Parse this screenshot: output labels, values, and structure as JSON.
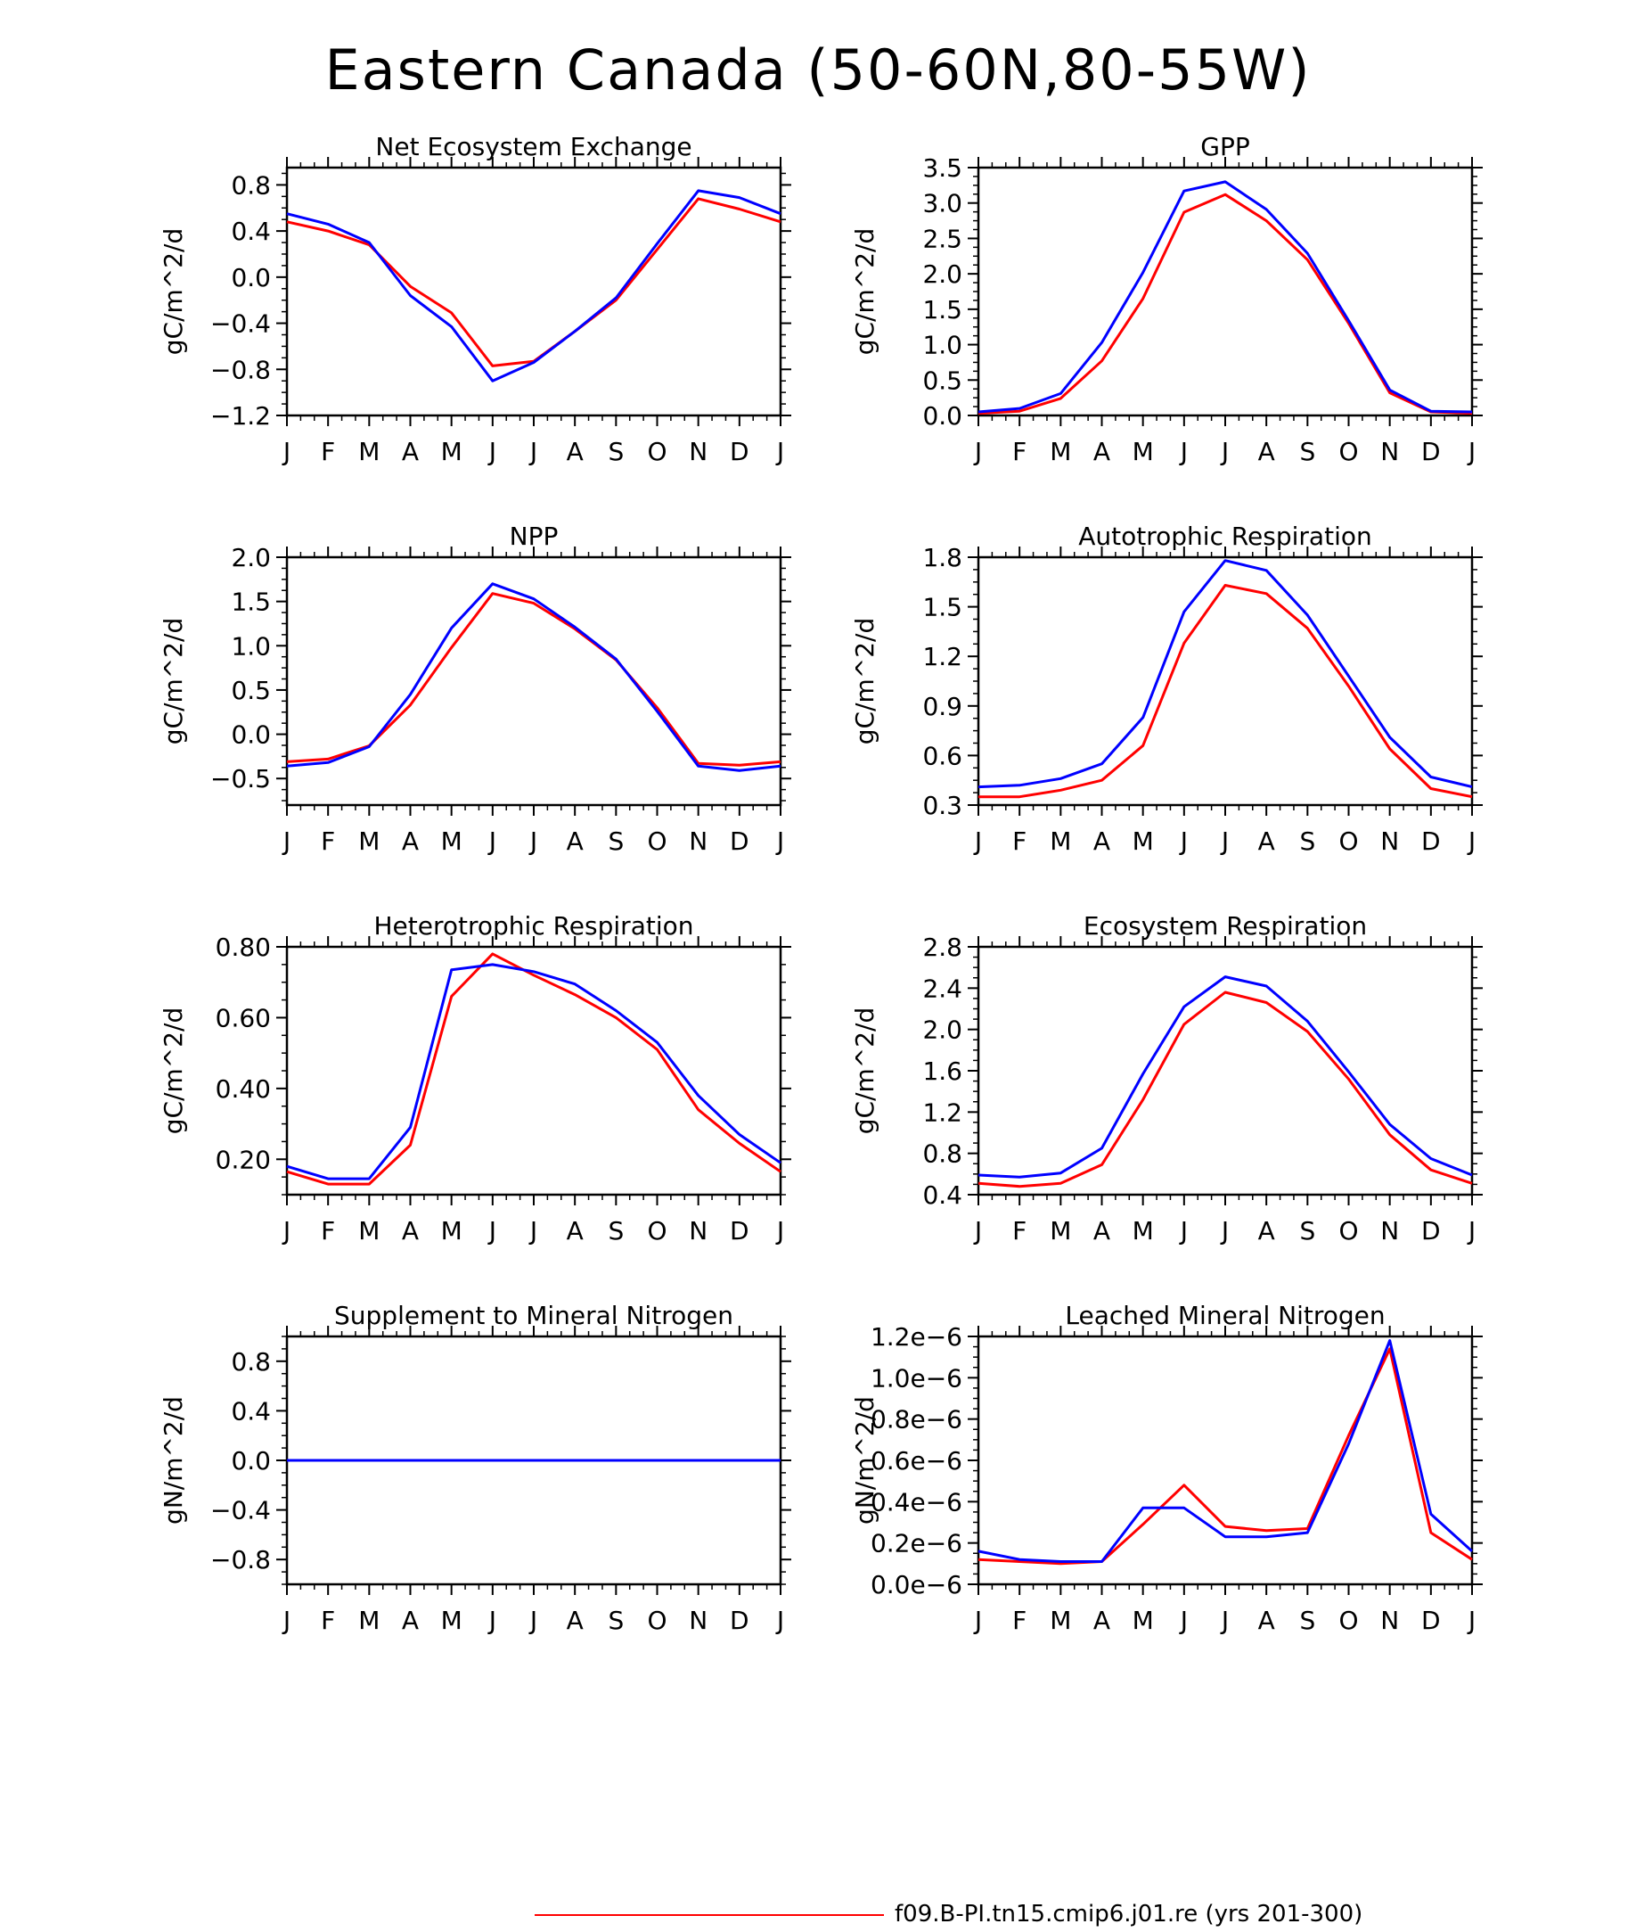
{
  "title": "Eastern Canada (50-60N,80-55W)",
  "legend": {
    "label": "f09.B-PI.tn15.cmip6.j01.re (yrs 201-300)",
    "color": "#ff0000"
  },
  "colors": {
    "series_a": "#ff0000",
    "series_b": "#0000ff"
  },
  "chart_data": [
    {
      "type": "line",
      "title": "Net Ecosystem Exchange",
      "xlabel": "",
      "ylabel": "gC/m^2/d",
      "categories": [
        "J",
        "F",
        "M",
        "A",
        "M",
        "J",
        "J",
        "A",
        "S",
        "O",
        "N",
        "D",
        "J"
      ],
      "ylim": [
        -1.2,
        0.95
      ],
      "yticks": [
        -1.2,
        -0.8,
        -0.4,
        0.0,
        0.4,
        0.8
      ],
      "ytick_labels": [
        "−1.2",
        "−0.8",
        "−0.4",
        "0.0",
        "0.4",
        "0.8"
      ],
      "series": [
        {
          "color": "#ff0000",
          "values": [
            0.48,
            0.4,
            0.28,
            -0.08,
            -0.31,
            -0.77,
            -0.73,
            -0.47,
            -0.2,
            0.24,
            0.68,
            0.59,
            0.48
          ]
        },
        {
          "color": "#0000ff",
          "values": [
            0.55,
            0.46,
            0.3,
            -0.16,
            -0.43,
            -0.9,
            -0.74,
            -0.47,
            -0.18,
            0.29,
            0.75,
            0.69,
            0.55
          ]
        }
      ]
    },
    {
      "type": "line",
      "title": "GPP",
      "xlabel": "",
      "ylabel": "gC/m^2/d",
      "categories": [
        "J",
        "F",
        "M",
        "A",
        "M",
        "J",
        "J",
        "A",
        "S",
        "O",
        "N",
        "D",
        "J"
      ],
      "ylim": [
        0.0,
        3.5
      ],
      "yticks": [
        0.0,
        0.5,
        1.0,
        1.5,
        2.0,
        2.5,
        3.0,
        3.5
      ],
      "ytick_labels": [
        "0.0",
        "0.5",
        "1.0",
        "1.5",
        "2.0",
        "2.5",
        "3.0",
        "3.5"
      ],
      "series": [
        {
          "color": "#ff0000",
          "values": [
            0.03,
            0.06,
            0.24,
            0.77,
            1.65,
            2.87,
            3.12,
            2.75,
            2.2,
            1.3,
            0.32,
            0.05,
            0.03
          ]
        },
        {
          "color": "#0000ff",
          "values": [
            0.05,
            0.1,
            0.31,
            1.03,
            2.02,
            3.17,
            3.3,
            2.91,
            2.29,
            1.34,
            0.36,
            0.06,
            0.05
          ]
        }
      ]
    },
    {
      "type": "line",
      "title": "NPP",
      "xlabel": "",
      "ylabel": "gC/m^2/d",
      "categories": [
        "J",
        "F",
        "M",
        "A",
        "M",
        "J",
        "J",
        "A",
        "S",
        "O",
        "N",
        "D",
        "J"
      ],
      "ylim": [
        -0.8,
        2.0
      ],
      "yticks": [
        -0.5,
        0.0,
        0.5,
        1.0,
        1.5,
        2.0
      ],
      "ytick_labels": [
        "−0.5",
        "0.0",
        "0.5",
        "1.0",
        "1.5",
        "2.0"
      ],
      "series": [
        {
          "color": "#ff0000",
          "values": [
            -0.31,
            -0.28,
            -0.13,
            0.33,
            0.98,
            1.59,
            1.48,
            1.19,
            0.84,
            0.3,
            -0.33,
            -0.35,
            -0.31
          ]
        },
        {
          "color": "#0000ff",
          "values": [
            -0.36,
            -0.32,
            -0.14,
            0.45,
            1.2,
            1.7,
            1.53,
            1.21,
            0.85,
            0.26,
            -0.36,
            -0.41,
            -0.36
          ]
        }
      ]
    },
    {
      "type": "line",
      "title": "Autotrophic Respiration",
      "xlabel": "",
      "ylabel": "gC/m^2/d",
      "categories": [
        "J",
        "F",
        "M",
        "A",
        "M",
        "J",
        "J",
        "A",
        "S",
        "O",
        "N",
        "D",
        "J"
      ],
      "ylim": [
        0.3,
        1.8
      ],
      "yticks": [
        0.3,
        0.6,
        0.9,
        1.2,
        1.5,
        1.8
      ],
      "ytick_labels": [
        "0.3",
        "0.6",
        "0.9",
        "1.2",
        "1.5",
        "1.8"
      ],
      "series": [
        {
          "color": "#ff0000",
          "values": [
            0.35,
            0.35,
            0.39,
            0.45,
            0.66,
            1.28,
            1.63,
            1.58,
            1.37,
            1.02,
            0.64,
            0.4,
            0.35
          ]
        },
        {
          "color": "#0000ff",
          "values": [
            0.41,
            0.42,
            0.46,
            0.55,
            0.83,
            1.47,
            1.78,
            1.72,
            1.45,
            1.08,
            0.71,
            0.47,
            0.41
          ]
        }
      ]
    },
    {
      "type": "line",
      "title": "Heterotrophic Respiration",
      "xlabel": "",
      "ylabel": "gC/m^2/d",
      "categories": [
        "J",
        "F",
        "M",
        "A",
        "M",
        "J",
        "J",
        "A",
        "S",
        "O",
        "N",
        "D",
        "J"
      ],
      "ylim": [
        0.1,
        0.8
      ],
      "yticks": [
        0.2,
        0.4,
        0.6,
        0.8
      ],
      "ytick_labels": [
        "0.20",
        "0.40",
        "0.60",
        "0.80"
      ],
      "series": [
        {
          "color": "#ff0000",
          "values": [
            0.165,
            0.13,
            0.13,
            0.24,
            0.66,
            0.78,
            0.72,
            0.665,
            0.6,
            0.51,
            0.34,
            0.245,
            0.165
          ]
        },
        {
          "color": "#0000ff",
          "values": [
            0.18,
            0.145,
            0.145,
            0.29,
            0.735,
            0.75,
            0.73,
            0.695,
            0.62,
            0.53,
            0.38,
            0.27,
            0.19
          ]
        }
      ]
    },
    {
      "type": "line",
      "title": "Ecosystem Respiration",
      "xlabel": "",
      "ylabel": "gC/m^2/d",
      "categories": [
        "J",
        "F",
        "M",
        "A",
        "M",
        "J",
        "J",
        "A",
        "S",
        "O",
        "N",
        "D",
        "J"
      ],
      "ylim": [
        0.4,
        2.8
      ],
      "yticks": [
        0.4,
        0.8,
        1.2,
        1.6,
        2.0,
        2.4,
        2.8
      ],
      "ytick_labels": [
        "0.4",
        "0.8",
        "1.2",
        "1.6",
        "2.0",
        "2.4",
        "2.8"
      ],
      "series": [
        {
          "color": "#ff0000",
          "values": [
            0.51,
            0.48,
            0.51,
            0.69,
            1.32,
            2.05,
            2.36,
            2.26,
            1.98,
            1.52,
            0.98,
            0.64,
            0.51
          ]
        },
        {
          "color": "#0000ff",
          "values": [
            0.59,
            0.57,
            0.61,
            0.85,
            1.57,
            2.22,
            2.51,
            2.42,
            2.08,
            1.59,
            1.08,
            0.75,
            0.59
          ]
        }
      ]
    },
    {
      "type": "line",
      "title": "Supplement to Mineral Nitrogen",
      "xlabel": "",
      "ylabel": "gN/m^2/d",
      "categories": [
        "J",
        "F",
        "M",
        "A",
        "M",
        "J",
        "J",
        "A",
        "S",
        "O",
        "N",
        "D",
        "J"
      ],
      "ylim": [
        -1.0,
        1.0
      ],
      "yticks": [
        -0.8,
        -0.4,
        0.0,
        0.4,
        0.8
      ],
      "ytick_labels": [
        "−0.8",
        "−0.4",
        "0.0",
        "0.4",
        "0.8"
      ],
      "series": [
        {
          "color": "#ff0000",
          "values": [
            0,
            0,
            0,
            0,
            0,
            0,
            0,
            0,
            0,
            0,
            0,
            0,
            0
          ]
        },
        {
          "color": "#0000ff",
          "values": [
            0,
            0,
            0,
            0,
            0,
            0,
            0,
            0,
            0,
            0,
            0,
            0,
            0
          ]
        }
      ]
    },
    {
      "type": "line",
      "title": "Leached Mineral Nitrogen",
      "xlabel": "",
      "ylabel": "gN/m^2/d",
      "categories": [
        "J",
        "F",
        "M",
        "A",
        "M",
        "J",
        "J",
        "A",
        "S",
        "O",
        "N",
        "D",
        "J"
      ],
      "ylim": [
        0.0,
        1.2e-06
      ],
      "yticks": [
        0.0,
        2e-07,
        4e-07,
        6e-07,
        8e-07,
        1e-06,
        1.2e-06
      ],
      "ytick_labels": [
        "0.0e−6",
        "0.2e−6",
        "0.4e−6",
        "0.6e−6",
        "0.8e−6",
        "1.0e−6",
        "1.2e−6"
      ],
      "series": [
        {
          "color": "#ff0000",
          "values": [
            1.2e-07,
            1.1e-07,
            1e-07,
            1.1e-07,
            2.9e-07,
            4.8e-07,
            2.8e-07,
            2.6e-07,
            2.7e-07,
            7.2e-07,
            1.14e-06,
            2.5e-07,
            1.2e-07
          ]
        },
        {
          "color": "#0000ff",
          "values": [
            1.6e-07,
            1.2e-07,
            1.1e-07,
            1.1e-07,
            3.7e-07,
            3.7e-07,
            2.3e-07,
            2.3e-07,
            2.5e-07,
            6.8e-07,
            1.18e-06,
            3.4e-07,
            1.6e-07
          ]
        }
      ]
    }
  ]
}
